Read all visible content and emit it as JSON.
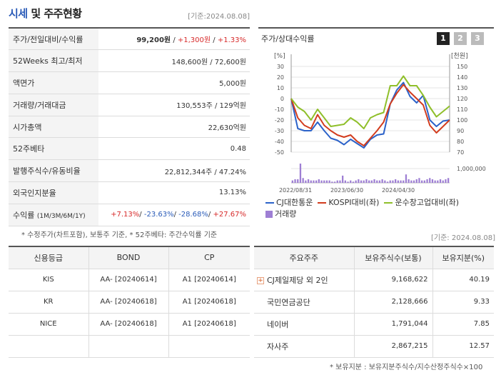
{
  "header": {
    "title_highlight": "시세",
    "title_rest": " 및 주주현황",
    "as_of": "[기준:2024.08.08]"
  },
  "summary": {
    "price_label": "주가/전일대비/수익률",
    "price": "99,200원",
    "change": "+1,300원",
    "return": "+1.33%",
    "w52_label": "52Weeks 최고/최저",
    "w52_value": "148,600원 / 72,600원",
    "par_label": "액면가",
    "par_value": "5,000원",
    "volume_label": "거래량/거래대금",
    "volume_value": "130,553주 / 129억원",
    "mcap_label": "시가총액",
    "mcap_value": "22,630억원",
    "beta_label": "52주베타",
    "beta_value": "0.48",
    "shares_label": "발행주식수/유동비율",
    "shares_value": "22,812,344주 / 47.24%",
    "foreign_label": "외국인지분율",
    "foreign_value": "13.13%",
    "ret_label": "수익률",
    "ret_periods": "(1M/3M/6M/1Y)",
    "ret_1m": "+7.13%",
    "ret_3m": "-23.63%",
    "ret_6m": "-28.68%",
    "ret_1y": "+27.67%",
    "sep": "/",
    "note": "* 수정주가(차트포함), 보통주 기준, * 52주베타: 주간수익률 기준"
  },
  "chart_panel": {
    "title": "주가/상대수익률",
    "buttons": [
      "1",
      "2",
      "3"
    ],
    "as_of": "[기준: 2024.08.08]"
  },
  "chart_data": {
    "type": "line",
    "left_axis_label": "[%]",
    "right_axis_label": "[천원]",
    "left_ylim": [
      -50,
      30
    ],
    "right_ylim": [
      70,
      150
    ],
    "left_ticks": [
      "30",
      "20",
      "10",
      "0",
      "-10",
      "-20",
      "-30",
      "-40",
      "-50"
    ],
    "right_ticks": [
      "150",
      "140",
      "130",
      "120",
      "110",
      "100",
      "90",
      "80",
      "70"
    ],
    "volume_tick": "1,000,000",
    "x_ticks": [
      "2022/08/31",
      "2023/06/30",
      "2024/04/30"
    ],
    "series": [
      {
        "name": "CJ대한통운",
        "color": "#2b62c9",
        "values": [
          0,
          -28,
          -30,
          -30,
          -22,
          -30,
          -37,
          -39,
          -43,
          -38,
          -42,
          -46,
          -38,
          -34,
          -33,
          -5,
          8,
          15,
          2,
          -4,
          3,
          -20,
          -26,
          -21,
          -20
        ]
      },
      {
        "name": "KOSPI대비(좌)",
        "color": "#d23c1e",
        "values": [
          0,
          -18,
          -25,
          -28,
          -15,
          -25,
          -30,
          -34,
          -36,
          -34,
          -40,
          -44,
          -37,
          -30,
          -22,
          -5,
          5,
          13,
          6,
          0,
          -6,
          -25,
          -32,
          -26,
          -20
        ]
      },
      {
        "name": "운수창고업대비(좌)",
        "color": "#8fbf2a",
        "values": [
          0,
          -8,
          -12,
          -20,
          -10,
          -18,
          -26,
          -25,
          -24,
          -18,
          -22,
          -28,
          -18,
          -15,
          -13,
          12,
          12,
          21,
          12,
          12,
          3,
          -8,
          -17,
          -12,
          -7
        ]
      }
    ],
    "volume": {
      "name": "거래량",
      "color": "#9e7fd4",
      "values": [
        2,
        3,
        3,
        16,
        4,
        2,
        3,
        2,
        2,
        2,
        3,
        2,
        2,
        2,
        2,
        1,
        1,
        2,
        2,
        6,
        2,
        1,
        2,
        1,
        2,
        3,
        2,
        2,
        3,
        2,
        2,
        3,
        2,
        2,
        3,
        2,
        1,
        2,
        2,
        3,
        2,
        2,
        2,
        7,
        3,
        2,
        2,
        3,
        4,
        2,
        2,
        3,
        4,
        3,
        2,
        2,
        3,
        2,
        3,
        4
      ]
    }
  },
  "credit": {
    "headers": [
      "신용등급",
      "BOND",
      "CP"
    ],
    "rows": [
      [
        "KIS",
        "AA-  [20240614]",
        "A1  [20240614]"
      ],
      [
        "KR",
        "AA-  [20240618]",
        "A1  [20240618]"
      ],
      [
        "NICE",
        "AA-  [20240618]",
        "A1  [20240618]"
      ],
      [
        "",
        "",
        ""
      ]
    ]
  },
  "holders": {
    "headers": [
      "주요주주",
      "보유주식수(보통)",
      "보유지분(%)"
    ],
    "rows": [
      [
        "CJ제일제당 외 2인",
        "9,168,622",
        "40.19"
      ],
      [
        "국민연금공단",
        "2,128,666",
        "9.33"
      ],
      [
        "네이버",
        "1,791,044",
        "7.85"
      ],
      [
        "자사주",
        "2,867,215",
        "12.57"
      ]
    ],
    "note": "* 보유지분 : 보유지분주식수/지수산정주식수×100"
  }
}
